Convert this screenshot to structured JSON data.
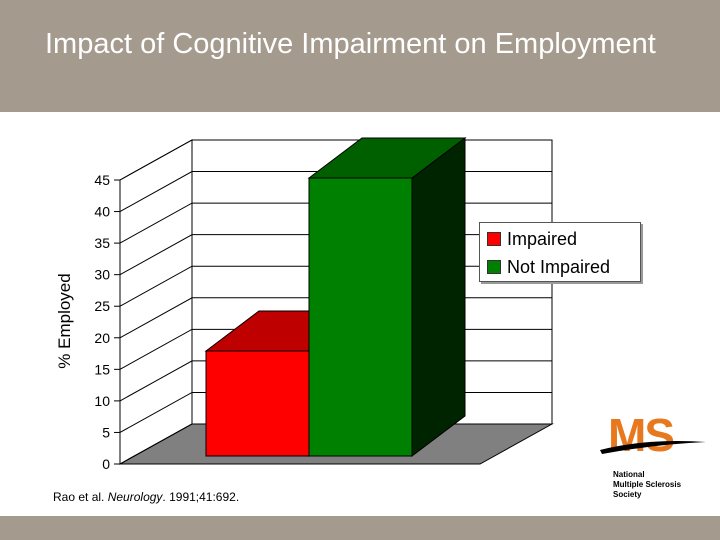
{
  "slide": {
    "title": "Impact of Cognitive Impairment on Employment",
    "citation_authors": "Rao et al.",
    "citation_journal": "Neurology",
    "citation_details": ". 1991;41:692."
  },
  "logo": {
    "mark": "MS",
    "text_line1": "National",
    "text_line2": "Multiple Sclerosis",
    "text_line3": "Society"
  },
  "colors": {
    "header_bg": "#a49a8d",
    "impaired": "#ff0000",
    "not_impaired": "#008000",
    "accent": "#e8781e"
  },
  "chart_data": {
    "type": "bar",
    "categories": [
      ""
    ],
    "series": [
      {
        "name": "Impaired",
        "values": [
          17
        ],
        "color": "#ff0000"
      },
      {
        "name": "Not Impaired",
        "values": [
          45
        ],
        "color": "#008000"
      }
    ],
    "ylabel": "% Employed",
    "ylim": [
      0,
      45
    ],
    "yticks": [
      "0",
      "5",
      "10",
      "15",
      "20",
      "25",
      "30",
      "35",
      "40",
      "45"
    ],
    "grid": true,
    "legend": "right",
    "style": "3d"
  }
}
